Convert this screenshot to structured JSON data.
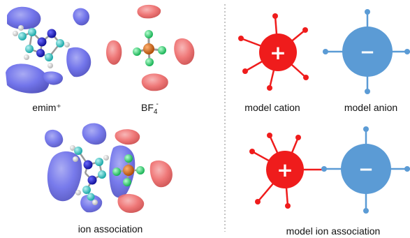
{
  "captions": {
    "emim": "emim⁺",
    "bf4_base": "BF",
    "bf4_sub": "4",
    "bf4_sup": "-",
    "ion_association": "ion association",
    "model_cation": "model cation",
    "model_anion": "model anion",
    "model_ion_association": "model ion association"
  },
  "signs": {
    "plus": "+",
    "minus": "−"
  },
  "colors": {
    "cation_red": "#ef1c1c",
    "anion_blue": "#5b9bd5",
    "lobe_blue": "#5b5ee8",
    "lobe_red": "#ee6a6a",
    "carbon_cyan": "#2fc7c7",
    "nitrogen_blue": "#1a1ad0",
    "hydrogen_white": "#f2f2f2",
    "boron_orange": "#e06a10",
    "fluorine_green": "#32e07a",
    "divider": "#888888"
  }
}
